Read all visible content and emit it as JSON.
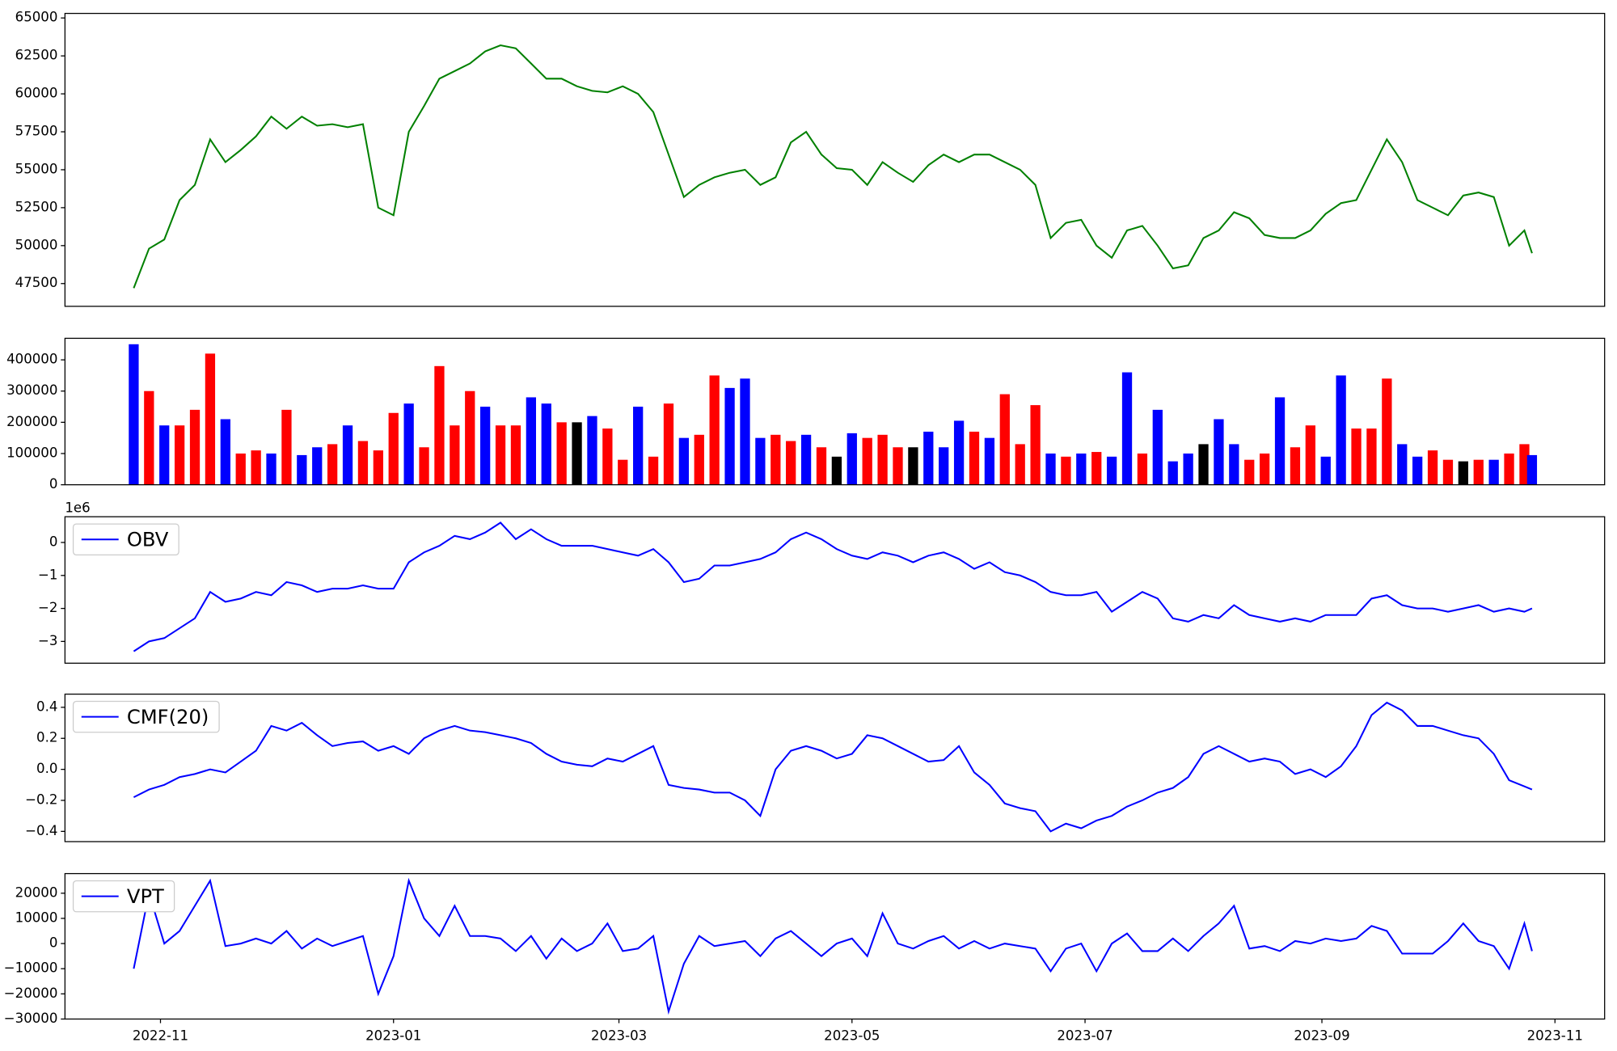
{
  "chart_data": [
    {
      "type": "line",
      "xlim": [
        -18,
        385
      ],
      "ylim": [
        46000,
        65300
      ],
      "yticks": [
        47500,
        50000,
        52500,
        55000,
        57500,
        60000,
        62500,
        65000
      ],
      "x": [
        0,
        4,
        8,
        12,
        16,
        20,
        24,
        28,
        32,
        36,
        40,
        44,
        48,
        52,
        56,
        60,
        64,
        68,
        72,
        76,
        80,
        84,
        88,
        92,
        96,
        100,
        104,
        108,
        112,
        116,
        120,
        124,
        128,
        132,
        136,
        140,
        144,
        148,
        152,
        156,
        160,
        164,
        168,
        172,
        176,
        180,
        184,
        188,
        192,
        196,
        200,
        204,
        208,
        212,
        216,
        220,
        224,
        228,
        232,
        236,
        240,
        244,
        248,
        252,
        256,
        260,
        264,
        268,
        272,
        276,
        280,
        284,
        288,
        292,
        296,
        300,
        304,
        308,
        312,
        316,
        320,
        324,
        328,
        332,
        336,
        340,
        344,
        348,
        352,
        356,
        360,
        364,
        366
      ],
      "series": [
        {
          "color": "#008000",
          "values": [
            47200,
            49800,
            50400,
            53000,
            54000,
            57000,
            55500,
            56300,
            57200,
            58500,
            57700,
            58500,
            57900,
            58000,
            57800,
            58000,
            52500,
            52000,
            57500,
            59200,
            61000,
            61500,
            62000,
            62800,
            63200,
            63000,
            62000,
            61000,
            61000,
            60500,
            60200,
            60100,
            60500,
            60000,
            58800,
            56000,
            53200,
            54000,
            54500,
            54800,
            55000,
            54000,
            54500,
            56800,
            57500,
            56000,
            55100,
            55000,
            54000,
            55500,
            54800,
            54200,
            55300,
            56000,
            55500,
            56000,
            56000,
            55500,
            55000,
            54000,
            50500,
            51500,
            51700,
            50000,
            49200,
            51000,
            51300,
            50000,
            48500,
            48700,
            50500,
            51000,
            52200,
            51800,
            50700,
            50500,
            50500,
            51000,
            52100,
            52800,
            53000,
            55000,
            57000,
            55500,
            53000,
            52500,
            52000,
            53300,
            53500,
            53200,
            50000,
            51000,
            49500
          ]
        }
      ]
    },
    {
      "type": "bar",
      "xlim": [
        -18,
        385
      ],
      "ylim": [
        0,
        469000
      ],
      "yticks": [
        0,
        100000,
        200000,
        300000,
        400000
      ],
      "x": [
        0,
        4,
        8,
        12,
        16,
        20,
        24,
        28,
        32,
        36,
        40,
        44,
        48,
        52,
        56,
        60,
        64,
        68,
        72,
        76,
        80,
        84,
        88,
        92,
        96,
        100,
        104,
        108,
        112,
        116,
        120,
        124,
        128,
        132,
        136,
        140,
        144,
        148,
        152,
        156,
        160,
        164,
        168,
        172,
        176,
        180,
        184,
        188,
        192,
        196,
        200,
        204,
        208,
        212,
        216,
        220,
        224,
        228,
        232,
        236,
        240,
        244,
        248,
        252,
        256,
        260,
        264,
        268,
        272,
        276,
        280,
        284,
        288,
        292,
        296,
        300,
        304,
        308,
        312,
        316,
        320,
        324,
        328,
        332,
        336,
        340,
        344,
        348,
        352,
        356,
        360,
        364,
        366
      ],
      "values": [
        450000,
        300000,
        190000,
        190000,
        240000,
        420000,
        210000,
        100000,
        110000,
        100000,
        240000,
        95000,
        120000,
        130000,
        190000,
        140000,
        110000,
        230000,
        260000,
        120000,
        380000,
        190000,
        300000,
        250000,
        190000,
        190000,
        280000,
        260000,
        200000,
        200000,
        220000,
        180000,
        80000,
        250000,
        90000,
        260000,
        150000,
        160000,
        350000,
        310000,
        340000,
        150000,
        160000,
        140000,
        160000,
        120000,
        90000,
        165000,
        150000,
        160000,
        120000,
        120000,
        170000,
        120000,
        205000,
        170000,
        150000,
        290000,
        130000,
        255000,
        100000,
        90000,
        100000,
        105000,
        90000,
        360000,
        100000,
        240000,
        75000,
        100000,
        130000,
        210000,
        130000,
        80000,
        100000,
        280000,
        120000,
        190000,
        90000,
        350000,
        180000,
        180000,
        340000,
        130000,
        90000,
        110000,
        80000,
        75000,
        80000,
        80000,
        100000,
        130000,
        95000
      ],
      "colors": [
        "#0000ff",
        "#ff0000",
        "#0000ff",
        "#ff0000",
        "#ff0000",
        "#ff0000",
        "#0000ff",
        "#ff0000",
        "#ff0000",
        "#0000ff",
        "#ff0000",
        "#0000ff",
        "#0000ff",
        "#ff0000",
        "#0000ff",
        "#ff0000",
        "#ff0000",
        "#ff0000",
        "#0000ff",
        "#ff0000",
        "#ff0000",
        "#ff0000",
        "#ff0000",
        "#0000ff",
        "#ff0000",
        "#ff0000",
        "#0000ff",
        "#0000ff",
        "#ff0000",
        "#000000",
        "#0000ff",
        "#ff0000",
        "#ff0000",
        "#0000ff",
        "#ff0000",
        "#ff0000",
        "#0000ff",
        "#ff0000",
        "#ff0000",
        "#0000ff",
        "#0000ff",
        "#0000ff",
        "#ff0000",
        "#ff0000",
        "#0000ff",
        "#ff0000",
        "#000000",
        "#0000ff",
        "#ff0000",
        "#ff0000",
        "#ff0000",
        "#000000",
        "#0000ff",
        "#0000ff",
        "#0000ff",
        "#ff0000",
        "#0000ff",
        "#ff0000",
        "#ff0000",
        "#ff0000",
        "#0000ff",
        "#ff0000",
        "#0000ff",
        "#ff0000",
        "#0000ff",
        "#0000ff",
        "#ff0000",
        "#0000ff",
        "#0000ff",
        "#0000ff",
        "#000000",
        "#0000ff",
        "#0000ff",
        "#ff0000",
        "#ff0000",
        "#0000ff",
        "#ff0000",
        "#ff0000",
        "#0000ff",
        "#0000ff",
        "#ff0000",
        "#ff0000",
        "#ff0000",
        "#0000ff",
        "#0000ff",
        "#ff0000",
        "#ff0000",
        "#000000",
        "#ff0000",
        "#0000ff",
        "#ff0000",
        "#ff0000",
        "#0000ff"
      ]
    },
    {
      "type": "line",
      "xlim": [
        -18,
        385
      ],
      "ylim": [
        -3.66,
        0.78
      ],
      "y_offset_label": "1e6",
      "legend": "upper left",
      "yticks": [
        {
          "value": -3,
          "label": "−3"
        },
        {
          "value": -2,
          "label": "−2"
        },
        {
          "value": -1,
          "label": "−1"
        },
        0
      ],
      "x": [
        0,
        4,
        8,
        12,
        16,
        20,
        24,
        28,
        32,
        36,
        40,
        44,
        48,
        52,
        56,
        60,
        64,
        68,
        72,
        76,
        80,
        84,
        88,
        92,
        96,
        100,
        104,
        108,
        112,
        116,
        120,
        124,
        128,
        132,
        136,
        140,
        144,
        148,
        152,
        156,
        160,
        164,
        168,
        172,
        176,
        180,
        184,
        188,
        192,
        196,
        200,
        204,
        208,
        212,
        216,
        220,
        224,
        228,
        232,
        236,
        240,
        244,
        248,
        252,
        256,
        260,
        264,
        268,
        272,
        276,
        280,
        284,
        288,
        292,
        296,
        300,
        304,
        308,
        312,
        316,
        320,
        324,
        328,
        332,
        336,
        340,
        344,
        348,
        352,
        356,
        360,
        364,
        366
      ],
      "series": [
        {
          "name": "OBV",
          "color": "#0000ff",
          "values": [
            -3.3,
            -3.0,
            -2.9,
            -2.6,
            -2.3,
            -1.5,
            -1.8,
            -1.7,
            -1.5,
            -1.6,
            -1.2,
            -1.3,
            -1.5,
            -1.4,
            -1.4,
            -1.3,
            -1.4,
            -1.4,
            -0.6,
            -0.3,
            -0.1,
            0.2,
            0.1,
            0.3,
            0.6,
            0.1,
            0.4,
            0.1,
            -0.1,
            -0.1,
            -0.1,
            -0.2,
            -0.3,
            -0.4,
            -0.2,
            -0.6,
            -1.2,
            -1.1,
            -0.7,
            -0.7,
            -0.6,
            -0.5,
            -0.3,
            0.1,
            0.3,
            0.1,
            -0.2,
            -0.4,
            -0.5,
            -0.3,
            -0.4,
            -0.6,
            -0.4,
            -0.3,
            -0.5,
            -0.8,
            -0.6,
            -0.9,
            -1.0,
            -1.2,
            -1.5,
            -1.6,
            -1.6,
            -1.5,
            -2.1,
            -1.8,
            -1.5,
            -1.7,
            -2.3,
            -2.4,
            -2.2,
            -2.3,
            -1.9,
            -2.2,
            -2.3,
            -2.4,
            -2.3,
            -2.4,
            -2.2,
            -2.2,
            -2.2,
            -1.7,
            -1.6,
            -1.9,
            -2.0,
            -2.0,
            -2.1,
            -2.0,
            -1.9,
            -2.1,
            -2.0,
            -2.1,
            -2.0
          ]
        }
      ]
    },
    {
      "type": "line",
      "xlim": [
        -18,
        385
      ],
      "ylim": [
        -0.466,
        0.485
      ],
      "legend": "upper left",
      "yticks": [
        {
          "value": -0.4,
          "label": "−0.4"
        },
        {
          "value": -0.2,
          "label": "−0.2"
        },
        {
          "value": 0,
          "label": "0.0"
        },
        0.2,
        0.4
      ],
      "x": [
        0,
        4,
        8,
        12,
        16,
        20,
        24,
        28,
        32,
        36,
        40,
        44,
        48,
        52,
        56,
        60,
        64,
        68,
        72,
        76,
        80,
        84,
        88,
        92,
        96,
        100,
        104,
        108,
        112,
        116,
        120,
        124,
        128,
        132,
        136,
        140,
        144,
        148,
        152,
        156,
        160,
        164,
        168,
        172,
        176,
        180,
        184,
        188,
        192,
        196,
        200,
        204,
        208,
        212,
        216,
        220,
        224,
        228,
        232,
        236,
        240,
        244,
        248,
        252,
        256,
        260,
        264,
        268,
        272,
        276,
        280,
        284,
        288,
        292,
        296,
        300,
        304,
        308,
        312,
        316,
        320,
        324,
        328,
        332,
        336,
        340,
        344,
        348,
        352,
        356,
        360,
        364,
        366
      ],
      "series": [
        {
          "name": "CMF(20)",
          "color": "#0000ff",
          "values": [
            -0.18,
            -0.13,
            -0.1,
            -0.05,
            -0.03,
            0.0,
            -0.02,
            0.05,
            0.12,
            0.28,
            0.25,
            0.3,
            0.22,
            0.15,
            0.17,
            0.18,
            0.12,
            0.15,
            0.1,
            0.2,
            0.25,
            0.28,
            0.25,
            0.24,
            0.22,
            0.2,
            0.17,
            0.1,
            0.05,
            0.03,
            0.02,
            0.07,
            0.05,
            0.1,
            0.15,
            -0.1,
            -0.12,
            -0.13,
            -0.15,
            -0.15,
            -0.2,
            -0.3,
            0.0,
            0.12,
            0.15,
            0.12,
            0.07,
            0.1,
            0.22,
            0.2,
            0.15,
            0.1,
            0.05,
            0.06,
            0.15,
            -0.02,
            -0.1,
            -0.22,
            -0.25,
            -0.27,
            -0.4,
            -0.35,
            -0.38,
            -0.33,
            -0.3,
            -0.24,
            -0.2,
            -0.15,
            -0.12,
            -0.05,
            0.1,
            0.15,
            0.1,
            0.05,
            0.07,
            0.05,
            -0.03,
            0.0,
            -0.05,
            0.02,
            0.15,
            0.35,
            0.43,
            0.38,
            0.28,
            0.28,
            0.25,
            0.22,
            0.2,
            0.1,
            -0.07,
            -0.11,
            -0.13
          ]
        }
      ]
    },
    {
      "type": "line",
      "xlim": [
        -18,
        385
      ],
      "ylim": [
        -30000,
        27800
      ],
      "legend": "upper left",
      "yticks": [
        {
          "value": -30000,
          "label": "−30000"
        },
        {
          "value": -20000,
          "label": "−20000"
        },
        {
          "value": -10000,
          "label": "−10000"
        },
        0,
        10000,
        20000
      ],
      "xticks": [
        {
          "value": 7,
          "label": "2022-11"
        },
        {
          "value": 68,
          "label": "2023-01"
        },
        {
          "value": 127,
          "label": "2023-03"
        },
        {
          "value": 188,
          "label": "2023-05"
        },
        {
          "value": 249,
          "label": "2023-07"
        },
        {
          "value": 311,
          "label": "2023-09"
        },
        {
          "value": 372,
          "label": "2023-11"
        }
      ],
      "x": [
        0,
        4,
        8,
        12,
        16,
        20,
        24,
        28,
        32,
        36,
        40,
        44,
        48,
        52,
        56,
        60,
        64,
        68,
        72,
        76,
        80,
        84,
        88,
        92,
        96,
        100,
        104,
        108,
        112,
        116,
        120,
        124,
        128,
        132,
        136,
        140,
        144,
        148,
        152,
        156,
        160,
        164,
        168,
        172,
        176,
        180,
        184,
        188,
        192,
        196,
        200,
        204,
        208,
        212,
        216,
        220,
        224,
        228,
        232,
        236,
        240,
        244,
        248,
        252,
        256,
        260,
        264,
        268,
        272,
        276,
        280,
        284,
        288,
        292,
        296,
        300,
        304,
        308,
        312,
        316,
        320,
        324,
        328,
        332,
        336,
        340,
        344,
        348,
        352,
        356,
        360,
        364,
        366
      ],
      "series": [
        {
          "name": "VPT",
          "color": "#0000ff",
          "values": [
            -10000,
            20000,
            0,
            5000,
            15000,
            25000,
            -1000,
            0,
            2000,
            0,
            5000,
            -2000,
            2000,
            -1000,
            1000,
            3000,
            -20000,
            -5000,
            25000,
            10000,
            3000,
            15000,
            3000,
            3000,
            2000,
            -3000,
            3000,
            -6000,
            2000,
            -3000,
            0,
            8000,
            -3000,
            -2000,
            3000,
            -27000,
            -8000,
            3000,
            -1000,
            0,
            1000,
            -5000,
            2000,
            5000,
            0,
            -5000,
            0,
            2000,
            -5000,
            12000,
            0,
            -2000,
            1000,
            3000,
            -2000,
            1000,
            -2000,
            0,
            -1000,
            -2000,
            -11000,
            -2000,
            0,
            -11000,
            0,
            4000,
            -3000,
            -3000,
            2000,
            -3000,
            3000,
            8000,
            15000,
            -2000,
            -1000,
            -3000,
            1000,
            0,
            2000,
            1000,
            2000,
            7000,
            5000,
            -4000,
            -4000,
            -4000,
            1000,
            8000,
            1000,
            -1000,
            -10000,
            8000,
            -3000
          ]
        }
      ]
    }
  ]
}
